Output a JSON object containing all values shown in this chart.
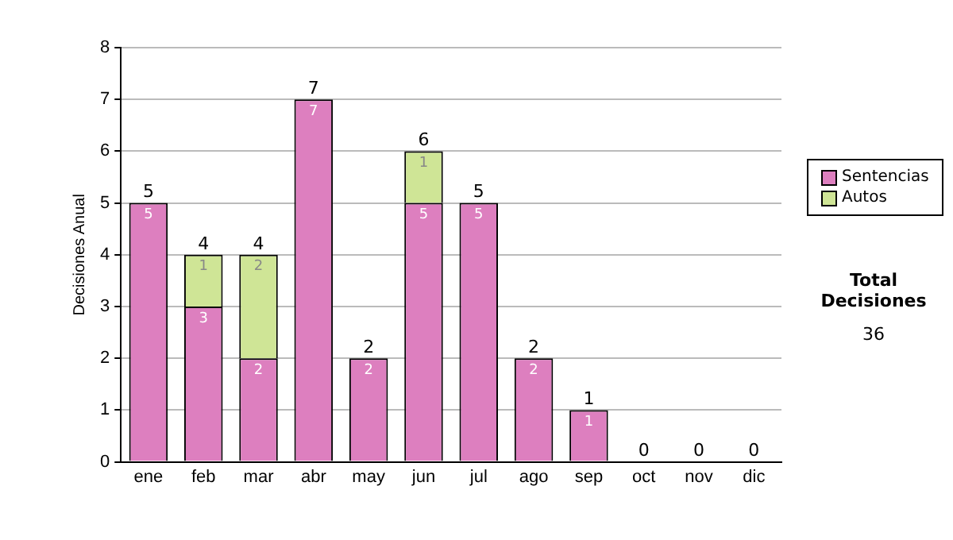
{
  "chart_data": {
    "type": "bar",
    "stacked": true,
    "ylabel": "Decisiones Anual",
    "categories": [
      "ene",
      "feb",
      "mar",
      "abr",
      "may",
      "jun",
      "jul",
      "ago",
      "sep",
      "oct",
      "nov",
      "dic"
    ],
    "series": [
      {
        "name": "Sentencias",
        "color": "#dd7fbf",
        "values": [
          5,
          3,
          2,
          7,
          2,
          5,
          5,
          2,
          1,
          0,
          0,
          0
        ],
        "value_labels": [
          "5",
          "3",
          "2",
          "7",
          "2",
          "5",
          "5",
          "2",
          "1",
          null,
          null,
          null
        ]
      },
      {
        "name": "Autos",
        "color": "#cfe596",
        "values": [
          0,
          1,
          2,
          0,
          0,
          1,
          0,
          0,
          0,
          0,
          0,
          0
        ],
        "value_labels": [
          null,
          "1",
          "2",
          null,
          null,
          "1",
          null,
          null,
          null,
          null,
          null,
          null
        ]
      }
    ],
    "totals": [
      "5",
      "4",
      "4",
      "7",
      "2",
      "6",
      "5",
      "2",
      "1",
      "0",
      "0",
      "0"
    ],
    "ylim": [
      0,
      8
    ],
    "yticks": [
      0,
      1,
      2,
      3,
      4,
      5,
      6,
      7,
      8
    ],
    "grid": "y",
    "legend": "right",
    "annotations": [
      "Total Decisiones",
      "36"
    ]
  }
}
